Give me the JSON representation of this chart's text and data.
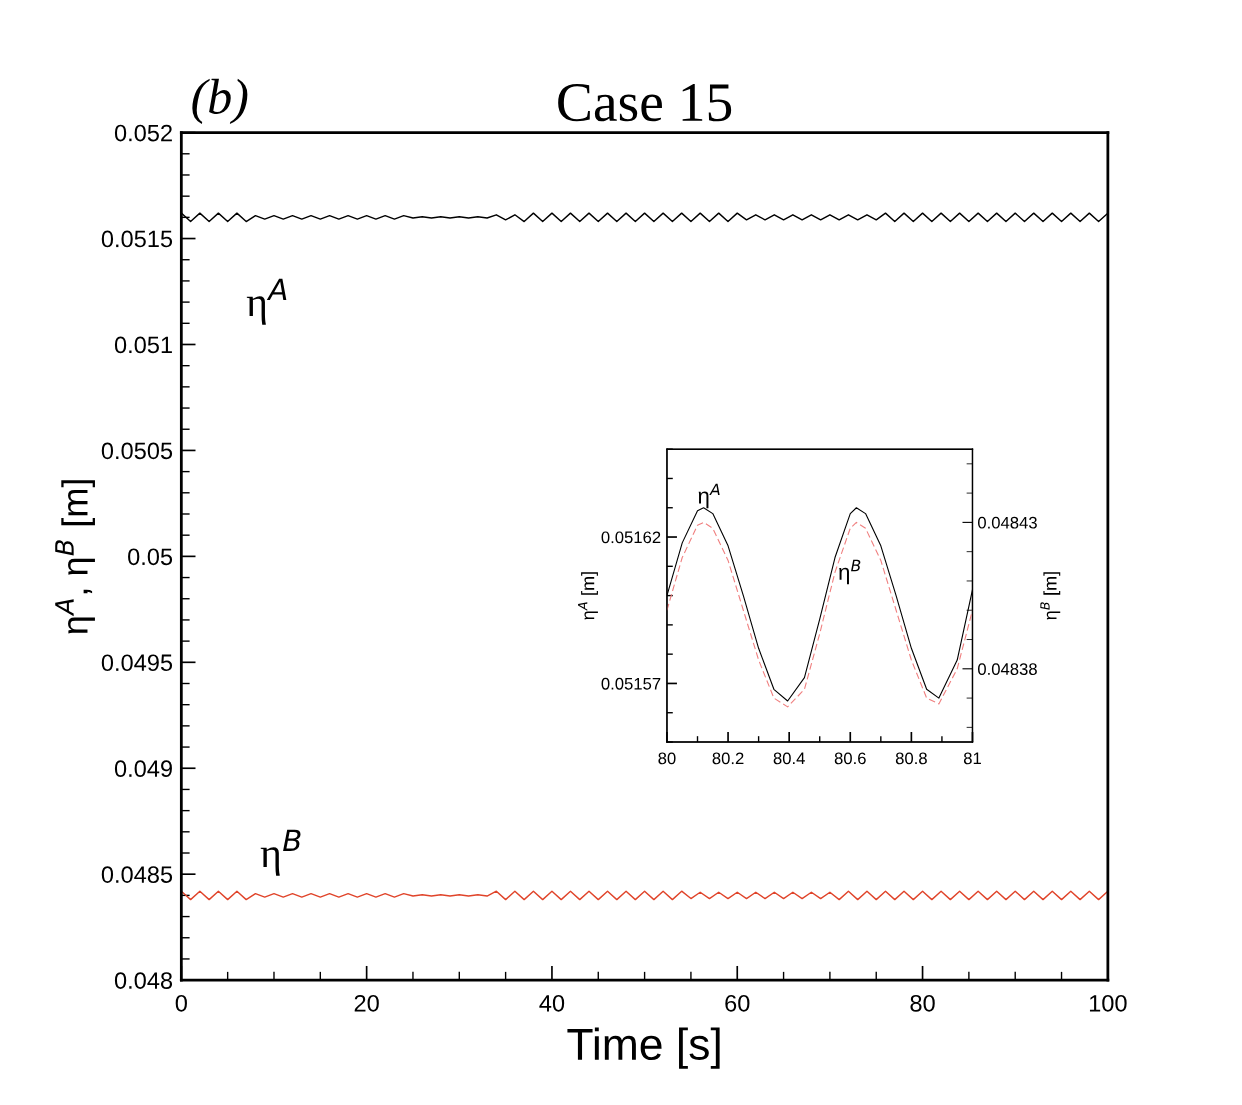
{
  "chart_data": [
    {
      "type": "line",
      "title": "Case 15",
      "xlabel": "Time [s]",
      "ylabel": "η$^{A}$, η$^{B}$ [m]",
      "annotations": [
        "(b)",
        "η$^{A}$",
        "η$^{B}$"
      ],
      "xlim": [
        0,
        100
      ],
      "ylim": [
        0.048,
        0.052
      ],
      "xticks": [
        0,
        20,
        40,
        60,
        80,
        100
      ],
      "yticks": [
        0.048,
        0.0485,
        0.049,
        0.0495,
        0.05,
        0.0505,
        0.051,
        0.0515,
        0.052
      ],
      "x": [
        0,
        1,
        2,
        3,
        4,
        5,
        6,
        7,
        8,
        9,
        10,
        11,
        12,
        13,
        14,
        15,
        16,
        17,
        18,
        19,
        20,
        21,
        22,
        23,
        24,
        25,
        26,
        27,
        28,
        29,
        30,
        31,
        32,
        33,
        34,
        35,
        36,
        37,
        38,
        39,
        40,
        41,
        42,
        43,
        44,
        45,
        46,
        47,
        48,
        49,
        50,
        51,
        52,
        53,
        54,
        55,
        56,
        57,
        58,
        59,
        60,
        61,
        62,
        63,
        64,
        65,
        66,
        67,
        68,
        69,
        70,
        71,
        72,
        73,
        74,
        75,
        76,
        77,
        78,
        79,
        80,
        81,
        82,
        83,
        84,
        85,
        86,
        87,
        88,
        89,
        90,
        91,
        92,
        93,
        94,
        95,
        96,
        97,
        98,
        99,
        100
      ],
      "series": [
        {
          "color": "#000000",
          "values": [
            0.05162,
            0.05158,
            0.05162,
            0.05158,
            0.05162,
            0.05158,
            0.05162,
            0.05158,
            0.051608,
            0.051592,
            0.051608,
            0.051592,
            0.051608,
            0.051592,
            0.051608,
            0.051592,
            0.051608,
            0.051592,
            0.051608,
            0.051592,
            0.051608,
            0.051592,
            0.051608,
            0.051592,
            0.051608,
            0.051597,
            0.051603,
            0.051597,
            0.051603,
            0.051597,
            0.051603,
            0.051597,
            0.051603,
            0.051597,
            0.051612,
            0.051588,
            0.051612,
            0.05158,
            0.05162,
            0.05158,
            0.05162,
            0.05158,
            0.05162,
            0.05158,
            0.05162,
            0.05158,
            0.05162,
            0.05158,
            0.05162,
            0.05158,
            0.05162,
            0.05158,
            0.05162,
            0.05158,
            0.05162,
            0.05158,
            0.05162,
            0.05158,
            0.05162,
            0.05158,
            0.05162,
            0.051588,
            0.051612,
            0.051588,
            0.051612,
            0.051588,
            0.051612,
            0.051588,
            0.051612,
            0.051588,
            0.051612,
            0.051588,
            0.051612,
            0.051588,
            0.051612,
            0.051588,
            0.05162,
            0.05158,
            0.05162,
            0.05158,
            0.05162,
            0.05158,
            0.05162,
            0.05158,
            0.05162,
            0.05158,
            0.05162,
            0.05158,
            0.05162,
            0.05158,
            0.05162,
            0.05158,
            0.05162,
            0.05158,
            0.05162,
            0.05158,
            0.05162,
            0.05158,
            0.05162,
            0.05158,
            0.05162
          ]
        },
        {
          "color": "#e0442a",
          "values": [
            0.04842,
            0.04838,
            0.04842,
            0.04838,
            0.04842,
            0.04838,
            0.04842,
            0.04838,
            0.048408,
            0.048392,
            0.048408,
            0.048392,
            0.048408,
            0.048392,
            0.048408,
            0.048392,
            0.048408,
            0.048392,
            0.048408,
            0.048392,
            0.048408,
            0.048392,
            0.048408,
            0.048392,
            0.048408,
            0.048397,
            0.048403,
            0.048397,
            0.048403,
            0.048397,
            0.048403,
            0.048397,
            0.048403,
            0.048397,
            0.04842,
            0.04838,
            0.04842,
            0.04838,
            0.04842,
            0.04838,
            0.04842,
            0.04838,
            0.04842,
            0.04838,
            0.04842,
            0.04838,
            0.04842,
            0.04838,
            0.04842,
            0.04838,
            0.04842,
            0.04838,
            0.04842,
            0.04838,
            0.04842,
            0.048385,
            0.048415,
            0.048385,
            0.048415,
            0.048385,
            0.048415,
            0.048385,
            0.048415,
            0.048385,
            0.048415,
            0.048385,
            0.048415,
            0.048385,
            0.048415,
            0.048385,
            0.048415,
            0.04838,
            0.04842,
            0.04838,
            0.04842,
            0.04838,
            0.04842,
            0.04838,
            0.04842,
            0.04838,
            0.04842,
            0.04838,
            0.04842,
            0.04838,
            0.04842,
            0.04838,
            0.04842,
            0.04838,
            0.04842,
            0.04838,
            0.04842,
            0.04838,
            0.04842,
            0.04838,
            0.04842,
            0.04838,
            0.04842,
            0.04838,
            0.04842,
            0.04838,
            0.04842
          ]
        }
      ]
    },
    {
      "type": "line",
      "ylabel": "η$^{A}$ [m]",
      "y2label": "η$^{B}$ [m]",
      "annotations": [
        "η$^{A}$",
        "η$^{B}$"
      ],
      "xlim": [
        80,
        81
      ],
      "ylim": [
        0.05155,
        0.05165
      ],
      "y2lim": [
        0.048355,
        0.048455
      ],
      "xticks": [
        80,
        80.2,
        80.4,
        80.6,
        80.8,
        81
      ],
      "yticks": [
        0.05157,
        0.05162
      ],
      "y2ticks": [
        0.04838,
        0.04843
      ],
      "x": [
        80,
        80.05,
        80.1,
        80.12,
        80.15,
        80.2,
        80.25,
        80.3,
        80.35,
        80.395,
        80.45,
        80.5,
        80.55,
        80.6,
        80.62,
        80.65,
        80.7,
        80.75,
        80.8,
        80.85,
        80.89,
        80.95,
        81
      ],
      "series": [
        {
          "color": "#000000",
          "line_style": "solid",
          "values": [
            0.0516,
            0.051618,
            0.051629,
            0.05163,
            0.051628,
            0.051617,
            0.0516,
            0.051582,
            0.051568,
            0.051564,
            0.051572,
            0.051592,
            0.051613,
            0.051628,
            0.05163,
            0.051628,
            0.051617,
            0.0516,
            0.051582,
            0.051568,
            0.051565,
            0.051578,
            0.051602
          ]
        },
        {
          "color": "#f08080",
          "axis": "y2",
          "line_style": "dashed",
          "values": [
            0.0484,
            0.048418,
            0.048429,
            0.04843,
            0.048428,
            0.048417,
            0.0484,
            0.048383,
            0.04837,
            0.048367,
            0.048373,
            0.048392,
            0.048413,
            0.048428,
            0.04843,
            0.048428,
            0.048417,
            0.0484,
            0.048383,
            0.04837,
            0.048368,
            0.04838,
            0.0484
          ]
        }
      ]
    }
  ]
}
